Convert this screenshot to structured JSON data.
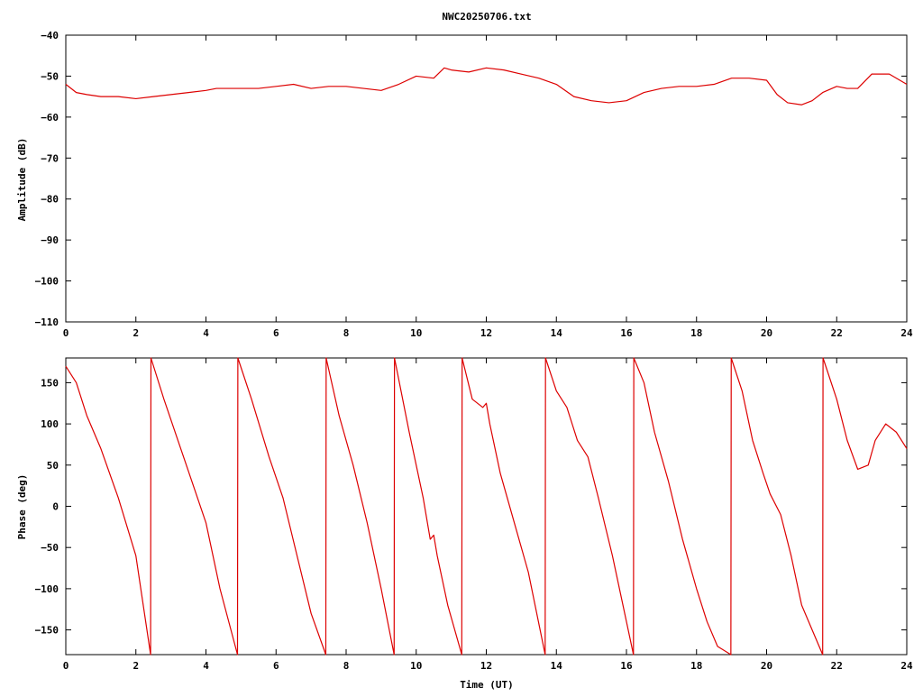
{
  "title": "NWC20250706.txt",
  "chart_data": [
    {
      "type": "line",
      "title": "NWC20250706.txt",
      "xlabel": "",
      "ylabel": "Amplitude (dB)",
      "xlim": [
        0,
        24
      ],
      "ylim": [
        -110,
        -40
      ],
      "xticks": [
        0,
        2,
        4,
        6,
        8,
        10,
        12,
        14,
        16,
        18,
        20,
        22,
        24
      ],
      "yticks": [
        -110,
        -100,
        -90,
        -80,
        -70,
        -60,
        -50,
        -40
      ],
      "xtick_labels": [
        "0",
        "2",
        "4",
        "6",
        "8",
        "10",
        "12",
        "14",
        "16",
        "18",
        "20",
        "22",
        "24"
      ],
      "ytick_labels": [
        "−110",
        "−100",
        "−90",
        "−80",
        "−70",
        "−60",
        "−50",
        "−40"
      ],
      "grid": false,
      "color": "#dd0000",
      "series": [
        {
          "x": [
            0,
            0.3,
            0.6,
            1.0,
            1.5,
            2.0,
            2.5,
            3.0,
            3.5,
            4.0,
            4.3,
            4.6,
            5.0,
            5.5,
            6.0,
            6.5,
            7.0,
            7.5,
            8.0,
            8.5,
            9.0,
            9.5,
            10.0,
            10.5,
            10.8,
            11.0,
            11.5,
            12.0,
            12.5,
            13.0,
            13.5,
            14.0,
            14.5,
            15.0,
            15.5,
            16.0,
            16.5,
            17.0,
            17.5,
            18.0,
            18.5,
            19.0,
            19.5,
            20.0,
            20.3,
            20.6,
            21.0,
            21.3,
            21.6,
            22.0,
            22.3,
            22.6,
            23.0,
            23.5,
            24.0
          ],
          "values": [
            -52,
            -54,
            -54.5,
            -55,
            -55,
            -55.5,
            -55,
            -54.5,
            -54,
            -53.5,
            -53,
            -53,
            -53,
            -53,
            -52.5,
            -52,
            -53,
            -52.5,
            -52.5,
            -53,
            -53.5,
            -52,
            -50,
            -50.5,
            -48,
            -48.5,
            -49,
            -48,
            -48.5,
            -49.5,
            -50.5,
            -52,
            -55,
            -56,
            -56.5,
            -56,
            -54,
            -53,
            -52.5,
            -52.5,
            -52,
            -50.5,
            -50.5,
            -51,
            -54.5,
            -56.5,
            -57,
            -56,
            -54,
            -52.5,
            -53,
            -53,
            -49.5,
            -49.5,
            -52
          ]
        }
      ]
    },
    {
      "type": "line",
      "title": "",
      "xlabel": "Time (UT)",
      "ylabel": "Phase (deg)",
      "xlim": [
        0,
        24
      ],
      "ylim": [
        -180,
        180
      ],
      "xticks": [
        0,
        2,
        4,
        6,
        8,
        10,
        12,
        14,
        16,
        18,
        20,
        22,
        24
      ],
      "yticks": [
        -150,
        -100,
        -50,
        0,
        50,
        100,
        150
      ],
      "xtick_labels": [
        "0",
        "2",
        "4",
        "6",
        "8",
        "10",
        "12",
        "14",
        "16",
        "18",
        "20",
        "22",
        "24"
      ],
      "ytick_labels": [
        "−150",
        "−100",
        "−50",
        "0",
        "50",
        "100",
        "150"
      ],
      "grid": false,
      "color": "#dd0000",
      "series": [
        {
          "x": [
            0,
            0.3,
            0.6,
            1.0,
            1.5,
            2.0,
            2.42,
            2.43,
            2.8,
            3.2,
            3.6,
            4.0,
            4.4,
            4.9,
            4.91,
            5.3,
            5.8,
            6.2,
            6.6,
            7.0,
            7.42,
            7.43,
            7.8,
            8.2,
            8.6,
            9.0,
            9.37,
            9.38,
            9.8,
            10.2,
            10.4,
            10.5,
            10.6,
            10.9,
            11.3,
            11.31,
            11.6,
            11.9,
            12.0,
            12.1,
            12.4,
            12.8,
            13.2,
            13.68,
            13.69,
            14.0,
            14.3,
            14.6,
            14.9,
            15.2,
            15.6,
            15.9,
            16.2,
            16.21,
            16.5,
            16.8,
            17.2,
            17.6,
            18.0,
            18.3,
            18.6,
            18.98,
            18.99,
            19.3,
            19.6,
            19.9,
            20.1,
            20.4,
            20.7,
            21.0,
            21.3,
            21.6,
            21.61,
            22.0,
            22.3,
            22.6,
            22.9,
            23.1,
            23.4,
            23.7,
            24.0
          ],
          "values": [
            170,
            150,
            110,
            70,
            10,
            -60,
            -180,
            180,
            130,
            80,
            30,
            -20,
            -100,
            -180,
            180,
            130,
            60,
            10,
            -60,
            -130,
            -180,
            180,
            110,
            50,
            -20,
            -100,
            -180,
            180,
            90,
            10,
            -40,
            -35,
            -60,
            -120,
            -180,
            180,
            130,
            120,
            125,
            100,
            40,
            -20,
            -80,
            -180,
            180,
            140,
            120,
            80,
            60,
            10,
            -60,
            -120,
            -180,
            180,
            150,
            90,
            30,
            -40,
            -100,
            -140,
            -170,
            -180,
            180,
            140,
            80,
            40,
            15,
            -10,
            -60,
            -120,
            -150,
            -180,
            180,
            130,
            80,
            45,
            50,
            80,
            100,
            90,
            70
          ]
        }
      ]
    }
  ]
}
